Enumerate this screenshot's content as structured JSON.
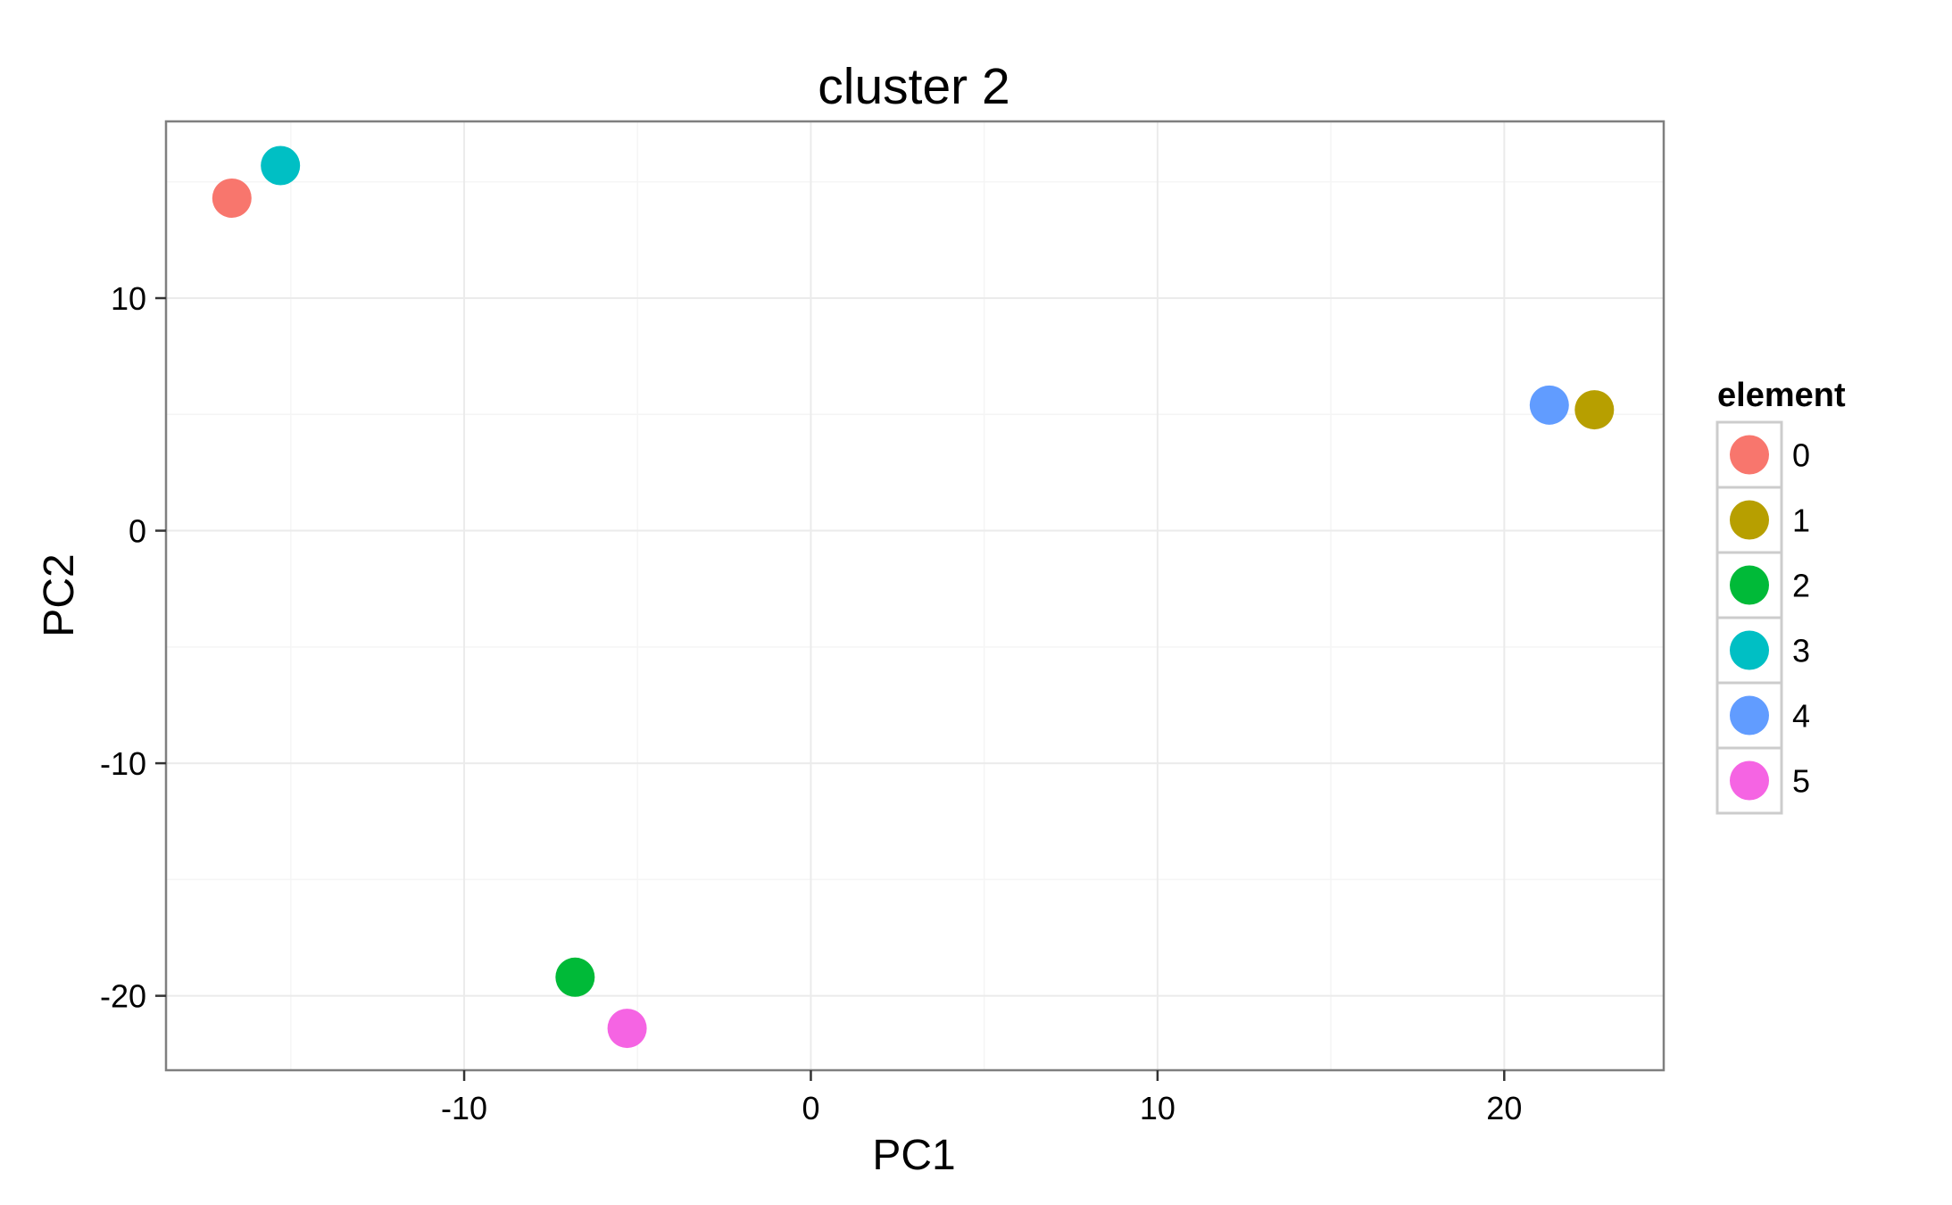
{
  "chart_data": {
    "type": "scatter",
    "title": "cluster 2",
    "xlabel": "PC1",
    "ylabel": "PC2",
    "xlim": [
      -18.6,
      24.6
    ],
    "ylim": [
      -23.2,
      17.6
    ],
    "x_ticks": [
      -10,
      0,
      10,
      20
    ],
    "y_ticks": [
      -20,
      -10,
      0,
      10
    ],
    "x_tick_labels": [
      "-10",
      "0",
      "10",
      "20"
    ],
    "y_tick_labels": [
      "-20",
      "-10",
      "0",
      "10"
    ],
    "grid": true,
    "legend": {
      "title": "element",
      "placement": "right"
    },
    "series": [
      {
        "name": "0",
        "color": "#F8766D",
        "points": [
          {
            "x": -16.7,
            "y": 14.3
          }
        ]
      },
      {
        "name": "1",
        "color": "#B79F00",
        "points": [
          {
            "x": 22.6,
            "y": 5.2
          }
        ]
      },
      {
        "name": "2",
        "color": "#00BA38",
        "points": [
          {
            "x": -6.8,
            "y": -19.2
          }
        ]
      },
      {
        "name": "3",
        "color": "#00BFC4",
        "points": [
          {
            "x": -15.3,
            "y": 15.7
          }
        ]
      },
      {
        "name": "4",
        "color": "#619CFF",
        "points": [
          {
            "x": 21.3,
            "y": 5.4
          }
        ]
      },
      {
        "name": "5",
        "color": "#F564E3",
        "points": [
          {
            "x": -5.3,
            "y": -21.4
          }
        ]
      }
    ]
  }
}
